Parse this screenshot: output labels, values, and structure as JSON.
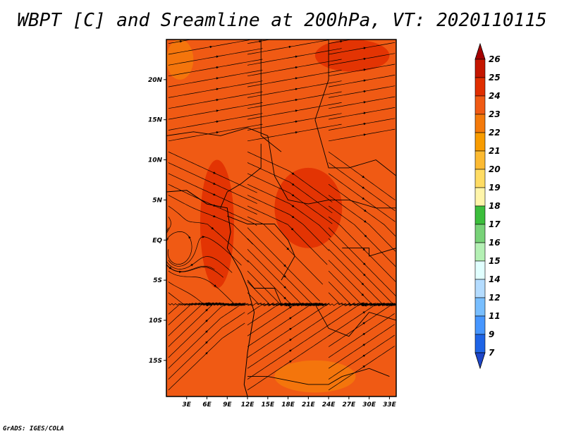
{
  "title": "WBPT [C] and Sreamline at 200hPa, VT: 2020110115",
  "credit": "GrADS: IGES/COLA",
  "map": {
    "lat_labels": [
      "20N",
      "15N",
      "10N",
      "5N",
      "EQ",
      "5S",
      "10S",
      "15S"
    ],
    "lat_values": [
      20,
      15,
      10,
      5,
      0,
      -5,
      -10,
      -15
    ],
    "lon_labels": [
      "3E",
      "6E",
      "9E",
      "12E",
      "15E",
      "18E",
      "21E",
      "24E",
      "27E",
      "30E",
      "33E"
    ],
    "lon_values": [
      3,
      6,
      9,
      12,
      15,
      18,
      21,
      24,
      27,
      30,
      33
    ],
    "lat_range": [
      -19.5,
      25
    ],
    "lon_range": [
      0,
      34
    ],
    "background_color": "#F05A14"
  },
  "colorbar": {
    "labels": [
      "26",
      "25",
      "24",
      "23",
      "22",
      "21",
      "20",
      "19",
      "18",
      "17",
      "16",
      "15",
      "14",
      "12",
      "11",
      "9",
      "7"
    ],
    "colors": [
      "#A50000",
      "#C41600",
      "#E02E00",
      "#F05A14",
      "#F47A0A",
      "#F89C00",
      "#FCBA32",
      "#FFDC64",
      "#FFF5AA",
      "#3CBE3C",
      "#78D278",
      "#B4F0B4",
      "#E1FFFF",
      "#B4DCFF",
      "#78BEFF",
      "#4696FF",
      "#1E64E6",
      "#1E46C8"
    ]
  },
  "chart_data": {
    "type": "heatmap",
    "title": "WBPT [C] and Sreamline at 200hPa, VT: 2020110115",
    "xlabel": "",
    "ylabel": "",
    "x_ticks": [
      "3E",
      "6E",
      "9E",
      "12E",
      "15E",
      "18E",
      "21E",
      "24E",
      "27E",
      "30E",
      "33E"
    ],
    "y_ticks": [
      "20N",
      "15N",
      "10N",
      "5N",
      "EQ",
      "5S",
      "10S",
      "15S"
    ],
    "xlim": [
      0,
      34
    ],
    "ylim": [
      -19.5,
      25
    ],
    "color_levels": [
      7,
      9,
      11,
      12,
      14,
      15,
      16,
      17,
      18,
      19,
      20,
      21,
      22,
      23,
      24,
      25,
      26
    ],
    "dominant_value_range": [
      22,
      25
    ],
    "regions": [
      {
        "lon": [
          22,
          33
        ],
        "lat": [
          21,
          25
        ],
        "value": 24.5
      },
      {
        "lon": [
          16,
          26
        ],
        "lat": [
          -1,
          9
        ],
        "value": 24.5
      },
      {
        "lon": [
          0,
          4
        ],
        "lat": [
          20,
          25
        ],
        "value": 22.5
      },
      {
        "lon": [
          16,
          28
        ],
        "lat": [
          -19,
          -15
        ],
        "value": 22.5
      },
      {
        "lon": [
          5,
          10
        ],
        "lat": [
          -6,
          10
        ],
        "value": 24.2
      }
    ]
  }
}
